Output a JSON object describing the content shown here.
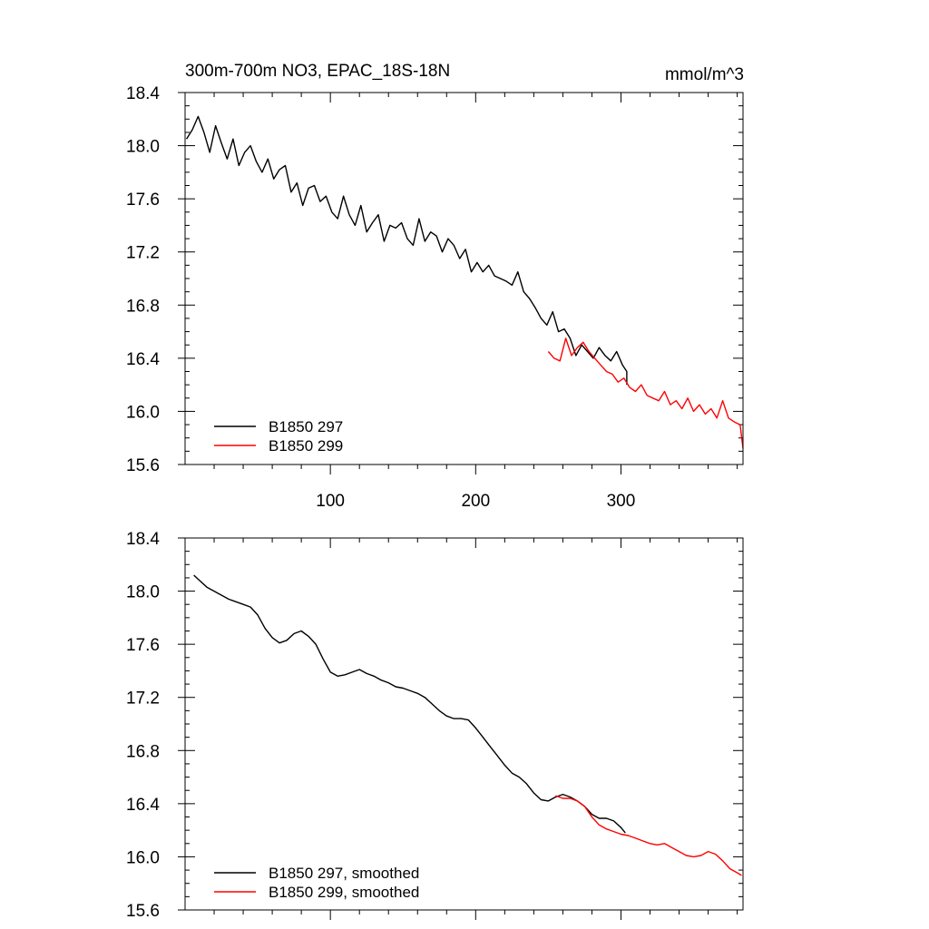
{
  "chart_data": [
    {
      "type": "line",
      "title": "300m-700m NO3, EPAC_18S-18N",
      "units": "mmol/m^3",
      "xlim": [
        0,
        384
      ],
      "ylim": [
        15.6,
        18.4
      ],
      "x_ticks": [
        100,
        200,
        300
      ],
      "y_ticks": [
        "15.6",
        "16.0",
        "16.4",
        "16.8",
        "17.2",
        "17.6",
        "18.0",
        "18.4"
      ],
      "x_tick_labels_shown": true,
      "legend_position": "bottom-left",
      "series": [
        {
          "name": "B1850 297",
          "color": "#000000",
          "x_start": 1,
          "x_end": 304,
          "step": 4,
          "values": [
            18.05,
            18.12,
            18.22,
            18.1,
            17.95,
            18.15,
            18.02,
            17.9,
            18.05,
            17.85,
            17.95,
            18.0,
            17.88,
            17.8,
            17.9,
            17.75,
            17.82,
            17.85,
            17.65,
            17.72,
            17.55,
            17.68,
            17.7,
            17.58,
            17.62,
            17.5,
            17.45,
            17.62,
            17.48,
            17.4,
            17.55,
            17.35,
            17.42,
            17.48,
            17.28,
            17.4,
            17.38,
            17.42,
            17.3,
            17.25,
            17.45,
            17.28,
            17.35,
            17.32,
            17.2,
            17.3,
            17.25,
            17.15,
            17.22,
            17.05,
            17.12,
            17.05,
            17.1,
            17.02,
            17.0,
            16.98,
            16.95,
            17.05,
            16.9,
            16.85,
            16.78,
            16.7,
            16.65,
            16.75,
            16.6,
            16.62,
            16.55,
            16.42,
            16.5,
            16.45,
            16.4,
            16.48,
            16.42,
            16.38,
            16.45,
            16.35,
            16.3,
            16.28,
            16.22,
            16.2
          ]
        },
        {
          "name": "B1850 299",
          "color": "#ff0000",
          "x_start": 250,
          "x_end": 384,
          "step": 4,
          "values": [
            16.45,
            16.4,
            16.38,
            16.55,
            16.42,
            16.48,
            16.52,
            16.45,
            16.4,
            16.35,
            16.3,
            16.28,
            16.22,
            16.25,
            16.18,
            16.15,
            16.2,
            16.12,
            16.1,
            16.08,
            16.15,
            16.05,
            16.08,
            16.02,
            16.1,
            16.0,
            16.05,
            15.98,
            16.02,
            15.95,
            16.08,
            15.95,
            15.92,
            15.9,
            15.72
          ]
        }
      ]
    },
    {
      "type": "line",
      "xlim": [
        0,
        384
      ],
      "ylim": [
        15.6,
        18.4
      ],
      "x_ticks": [
        100,
        200,
        300
      ],
      "y_ticks": [
        "15.6",
        "16.0",
        "16.4",
        "16.8",
        "17.2",
        "17.6",
        "18.0",
        "18.4"
      ],
      "x_tick_labels_shown": false,
      "legend_position": "bottom-left",
      "series": [
        {
          "name": "B1850 297, smoothed",
          "color": "#000000",
          "x": [
            6,
            10,
            15,
            20,
            25,
            30,
            35,
            40,
            45,
            50,
            55,
            60,
            65,
            70,
            75,
            80,
            85,
            90,
            95,
            100,
            105,
            110,
            115,
            120,
            125,
            130,
            135,
            140,
            145,
            150,
            155,
            160,
            165,
            170,
            175,
            180,
            185,
            190,
            195,
            200,
            205,
            210,
            215,
            220,
            225,
            230,
            235,
            240,
            245,
            250,
            255,
            260,
            265,
            270,
            275,
            280,
            285,
            290,
            295,
            300,
            303
          ],
          "values": [
            18.12,
            18.08,
            18.03,
            18.0,
            17.97,
            17.94,
            17.92,
            17.9,
            17.88,
            17.82,
            17.72,
            17.65,
            17.61,
            17.63,
            17.68,
            17.7,
            17.66,
            17.6,
            17.49,
            17.39,
            17.36,
            17.37,
            17.39,
            17.41,
            17.38,
            17.36,
            17.33,
            17.31,
            17.28,
            17.27,
            17.25,
            17.23,
            17.2,
            17.15,
            17.1,
            17.06,
            17.04,
            17.04,
            17.03,
            16.97,
            16.9,
            16.83,
            16.76,
            16.69,
            16.63,
            16.6,
            16.55,
            16.48,
            16.43,
            16.42,
            16.45,
            16.47,
            16.45,
            16.42,
            16.38,
            16.32,
            16.29,
            16.29,
            16.27,
            16.22,
            16.18
          ]
        },
        {
          "name": "B1850 299, smoothed",
          "color": "#ff0000",
          "x": [
            255,
            260,
            265,
            270,
            275,
            280,
            285,
            290,
            295,
            300,
            305,
            310,
            315,
            320,
            325,
            330,
            335,
            340,
            345,
            350,
            355,
            360,
            365,
            370,
            375,
            380,
            383
          ],
          "values": [
            16.46,
            16.44,
            16.44,
            16.42,
            16.38,
            16.3,
            16.24,
            16.21,
            16.19,
            16.17,
            16.16,
            16.14,
            16.12,
            16.1,
            16.09,
            16.1,
            16.07,
            16.04,
            16.01,
            16.0,
            16.01,
            16.04,
            16.02,
            15.97,
            15.91,
            15.88,
            15.86
          ]
        }
      ]
    }
  ]
}
